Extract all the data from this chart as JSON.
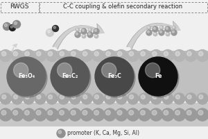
{
  "background_color": "#f0f0f0",
  "fig_width": 3.0,
  "fig_height": 2.0,
  "dpi": 100,
  "top_label_left": "RWGS",
  "top_label_right": "C-C coupling & olefin secondary reaction",
  "bottom_legend": "promoter (K, Ca, Mg, Si, Al)",
  "catalyst_labels": [
    "Fe₃O₄",
    "Fe₅C₂",
    "Fe₃C",
    "Fe"
  ],
  "catalyst_colors": [
    "#686868",
    "#585858",
    "#484848",
    "#101010"
  ],
  "surface_top_color": "#b8b8b8",
  "surface_mid_color": "#c8c8c8",
  "surface_bot_color": "#d0d0d0",
  "bubble_color_top": "#b0b0b0",
  "bubble_color_mid": "#a0a0a0",
  "bubble_color_bot": "#909090",
  "promoter_color": "#909090",
  "arrow_color": "#d0d0d0",
  "arrow_edge": "#aaaaaa",
  "box_bg": "#eeeeee",
  "text_color": "#222222"
}
